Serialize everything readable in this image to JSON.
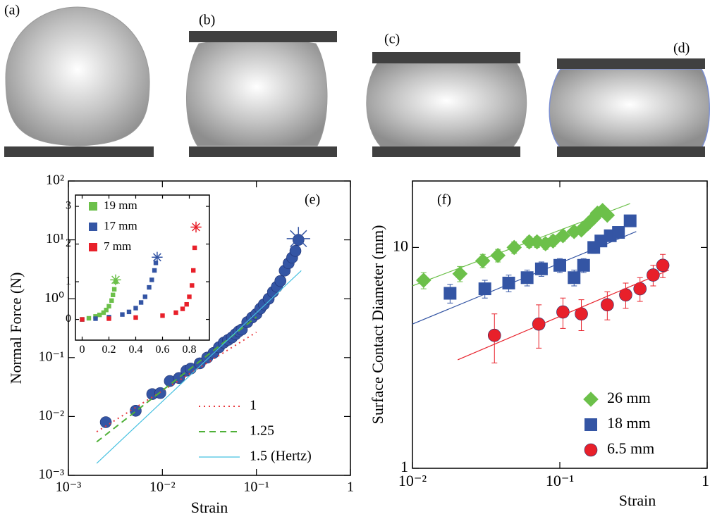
{
  "panel_labels": [
    "(a)",
    "(b)",
    "(c)",
    "(d)"
  ],
  "chart_data": [
    {
      "type": "scatter",
      "panel_label": "(e)",
      "xlabel": "Strain",
      "ylabel": "Normal Force (N)",
      "xscale": "log",
      "yscale": "log",
      "xlim": [
        0.001,
        1
      ],
      "ylim": [
        0.001,
        100
      ],
      "xticks": [
        {
          "value": 0.001,
          "label": "10⁻³"
        },
        {
          "value": 0.01,
          "label": "10⁻²"
        },
        {
          "value": 0.1,
          "label": "10⁻¹"
        },
        1
      ],
      "yticks": [
        {
          "value": 0.001,
          "label": "10⁻³"
        },
        {
          "value": 0.01,
          "label": "10⁻²"
        },
        {
          "value": 0.1,
          "label": "10⁻¹"
        },
        {
          "value": 1,
          "label": "10⁰"
        },
        {
          "value": 10,
          "label": "10¹"
        },
        {
          "value": 100,
          "label": "10²"
        }
      ],
      "legend": "lower right",
      "series": [
        {
          "color": "#3455a4",
          "marker": "circle",
          "x": [
            0.0025,
            0.0052,
            0.0078,
            0.0095,
            0.012,
            0.015,
            0.018,
            0.02,
            0.025,
            0.03,
            0.035,
            0.04,
            0.045,
            0.05,
            0.055,
            0.06,
            0.065,
            0.07,
            0.08,
            0.09,
            0.1,
            0.11,
            0.12,
            0.135,
            0.15,
            0.165,
            0.18,
            0.2,
            0.22,
            0.24,
            0.26,
            0.28
          ],
          "values": [
            0.008,
            0.0125,
            0.024,
            0.025,
            0.04,
            0.045,
            0.06,
            0.065,
            0.08,
            0.1,
            0.12,
            0.15,
            0.18,
            0.2,
            0.22,
            0.25,
            0.28,
            0.3,
            0.4,
            0.48,
            0.55,
            0.68,
            0.8,
            1.0,
            1.3,
            1.6,
            2.0,
            3.0,
            4.0,
            5.0,
            6.5,
            10
          ]
        },
        {
          "color": "#3455a4",
          "marker": "star",
          "x": [
            0.28
          ],
          "values": [
            10.5
          ]
        },
        {
          "name": "1",
          "color": "#e8383d",
          "mode": "line",
          "dash": "dotted",
          "x": [
            0.002,
            0.1
          ],
          "values": [
            0.0055,
            0.27
          ]
        },
        {
          "name": "1.25",
          "color": "#4fb038",
          "mode": "line",
          "dash": "dashed",
          "x": [
            0.002,
            0.1
          ],
          "values": [
            0.0037,
            0.49
          ]
        },
        {
          "name": "1.5 (Hertz)",
          "color": "#45c0e0",
          "mode": "line",
          "dash": "solid",
          "x": [
            0.002,
            0.3
          ],
          "values": [
            0.0016,
            3
          ]
        }
      ]
    },
    {
      "type": "scatter",
      "xlim": [
        -0.05,
        0.95
      ],
      "ylim": [
        -0.55,
        3.3
      ],
      "xticks": [
        0,
        0.2,
        0.4,
        0.6,
        0.8
      ],
      "yticks": [
        0,
        1,
        2,
        3
      ],
      "legend": "upper left",
      "series": [
        {
          "name": "19 mm",
          "color": "#6cc04a",
          "marker": "square",
          "x": [
            0,
            0.05,
            0.1,
            0.13,
            0.16,
            0.18,
            0.2,
            0.22,
            0.23,
            0.24,
            0.25
          ],
          "values": [
            0,
            0.03,
            0.08,
            0.12,
            0.18,
            0.25,
            0.35,
            0.5,
            0.65,
            0.8,
            1.0
          ]
        },
        {
          "name": "17 mm",
          "color": "#3455a4",
          "marker": "square",
          "x": [
            0,
            0.1,
            0.2,
            0.3,
            0.35,
            0.4,
            0.44,
            0.47,
            0.5,
            0.52,
            0.54,
            0.55
          ],
          "values": [
            0,
            0.02,
            0.06,
            0.13,
            0.2,
            0.3,
            0.45,
            0.6,
            0.85,
            1.05,
            1.3,
            1.5
          ]
        },
        {
          "name": "7 mm",
          "color": "#e8202a",
          "marker": "square",
          "x": [
            0,
            0.2,
            0.4,
            0.6,
            0.7,
            0.75,
            0.78,
            0.8,
            0.82,
            0.83,
            0.84
          ],
          "values": [
            0,
            0.02,
            0.05,
            0.1,
            0.18,
            0.28,
            0.4,
            0.6,
            0.9,
            1.3,
            1.9
          ]
        },
        {
          "color": "#6cc04a",
          "marker": "star",
          "x": [
            0.25
          ],
          "values": [
            1.05
          ]
        },
        {
          "color": "#3455a4",
          "marker": "star",
          "x": [
            0.56
          ],
          "values": [
            1.65
          ]
        },
        {
          "color": "#e8202a",
          "marker": "star",
          "x": [
            0.85
          ],
          "values": [
            2.45
          ]
        }
      ]
    },
    {
      "type": "scatter",
      "panel_label": "(f)",
      "xlabel": "Strain",
      "ylabel": "Surface Contact Diameter (mm)",
      "xscale": "log",
      "yscale": "log",
      "xlim": [
        0.01,
        1
      ],
      "ylim": [
        1,
        20
      ],
      "xticks": [
        {
          "value": 0.01,
          "label": "10⁻²"
        },
        {
          "value": 0.1,
          "label": "10⁻¹"
        },
        1
      ],
      "yticks": [
        1,
        10
      ],
      "legend": "lower right",
      "series": [
        {
          "name": "26 mm",
          "color": "#6cc04a",
          "marker": "diamond",
          "x": [
            0.0119,
            0.021,
            0.03,
            0.038,
            0.049,
            0.062,
            0.07,
            0.08,
            0.09,
            0.105,
            0.125,
            0.14,
            0.155,
            0.17,
            0.18,
            0.195,
            0.21
          ],
          "values": [
            7.1,
            7.6,
            8.7,
            9.2,
            10.0,
            10.6,
            10.6,
            10.4,
            10.7,
            11.3,
            11.8,
            12.0,
            12.8,
            13.6,
            14.3,
            14.7,
            14.0
          ],
          "errors": [
            0.6,
            0.6,
            0.6,
            0.6,
            0.6,
            0.6,
            0.6,
            0.6,
            0.6,
            0.6,
            0.6,
            0.6,
            0.6,
            0.6,
            0.6,
            0.6,
            0.6
          ]
        },
        {
          "name": "18 mm",
          "color": "#3455a4",
          "marker": "square",
          "x": [
            0.018,
            0.031,
            0.045,
            0.06,
            0.075,
            0.1,
            0.125,
            0.145,
            0.17,
            0.19,
            0.22,
            0.25,
            0.3
          ],
          "values": [
            6.2,
            6.5,
            6.9,
            7.3,
            8.0,
            8.3,
            7.3,
            8.3,
            10.0,
            10.7,
            11.3,
            11.7,
            13.2
          ],
          "errors": [
            0.6,
            0.6,
            0.6,
            0.6,
            0.6,
            0.6,
            0.6,
            0.6,
            0.6,
            0.6,
            0.6,
            0.6,
            0.6
          ]
        },
        {
          "name": "6.5 mm",
          "color": "#e8202a",
          "marker": "circle",
          "x": [
            0.036,
            0.072,
            0.105,
            0.14,
            0.21,
            0.28,
            0.35,
            0.43,
            0.5
          ],
          "values": [
            4.0,
            4.5,
            5.1,
            5.0,
            5.5,
            6.1,
            6.5,
            7.5,
            8.3
          ],
          "errors": [
            1.0,
            1.0,
            0.8,
            0.8,
            0.8,
            0.8,
            0.8,
            0.8,
            1.0
          ]
        },
        {
          "color": "#6cc04a",
          "mode": "line",
          "dash": "solid",
          "x": [
            0.01,
            0.3
          ],
          "values": [
            6.7,
            15.8
          ]
        },
        {
          "color": "#3455a4",
          "mode": "line",
          "dash": "solid",
          "x": [
            0.01,
            0.33
          ],
          "values": [
            4.5,
            11.8
          ]
        },
        {
          "color": "#e8202a",
          "mode": "line",
          "dash": "solid",
          "x": [
            0.0203,
            0.55
          ],
          "values": [
            3.1,
            7.9
          ]
        }
      ]
    }
  ]
}
